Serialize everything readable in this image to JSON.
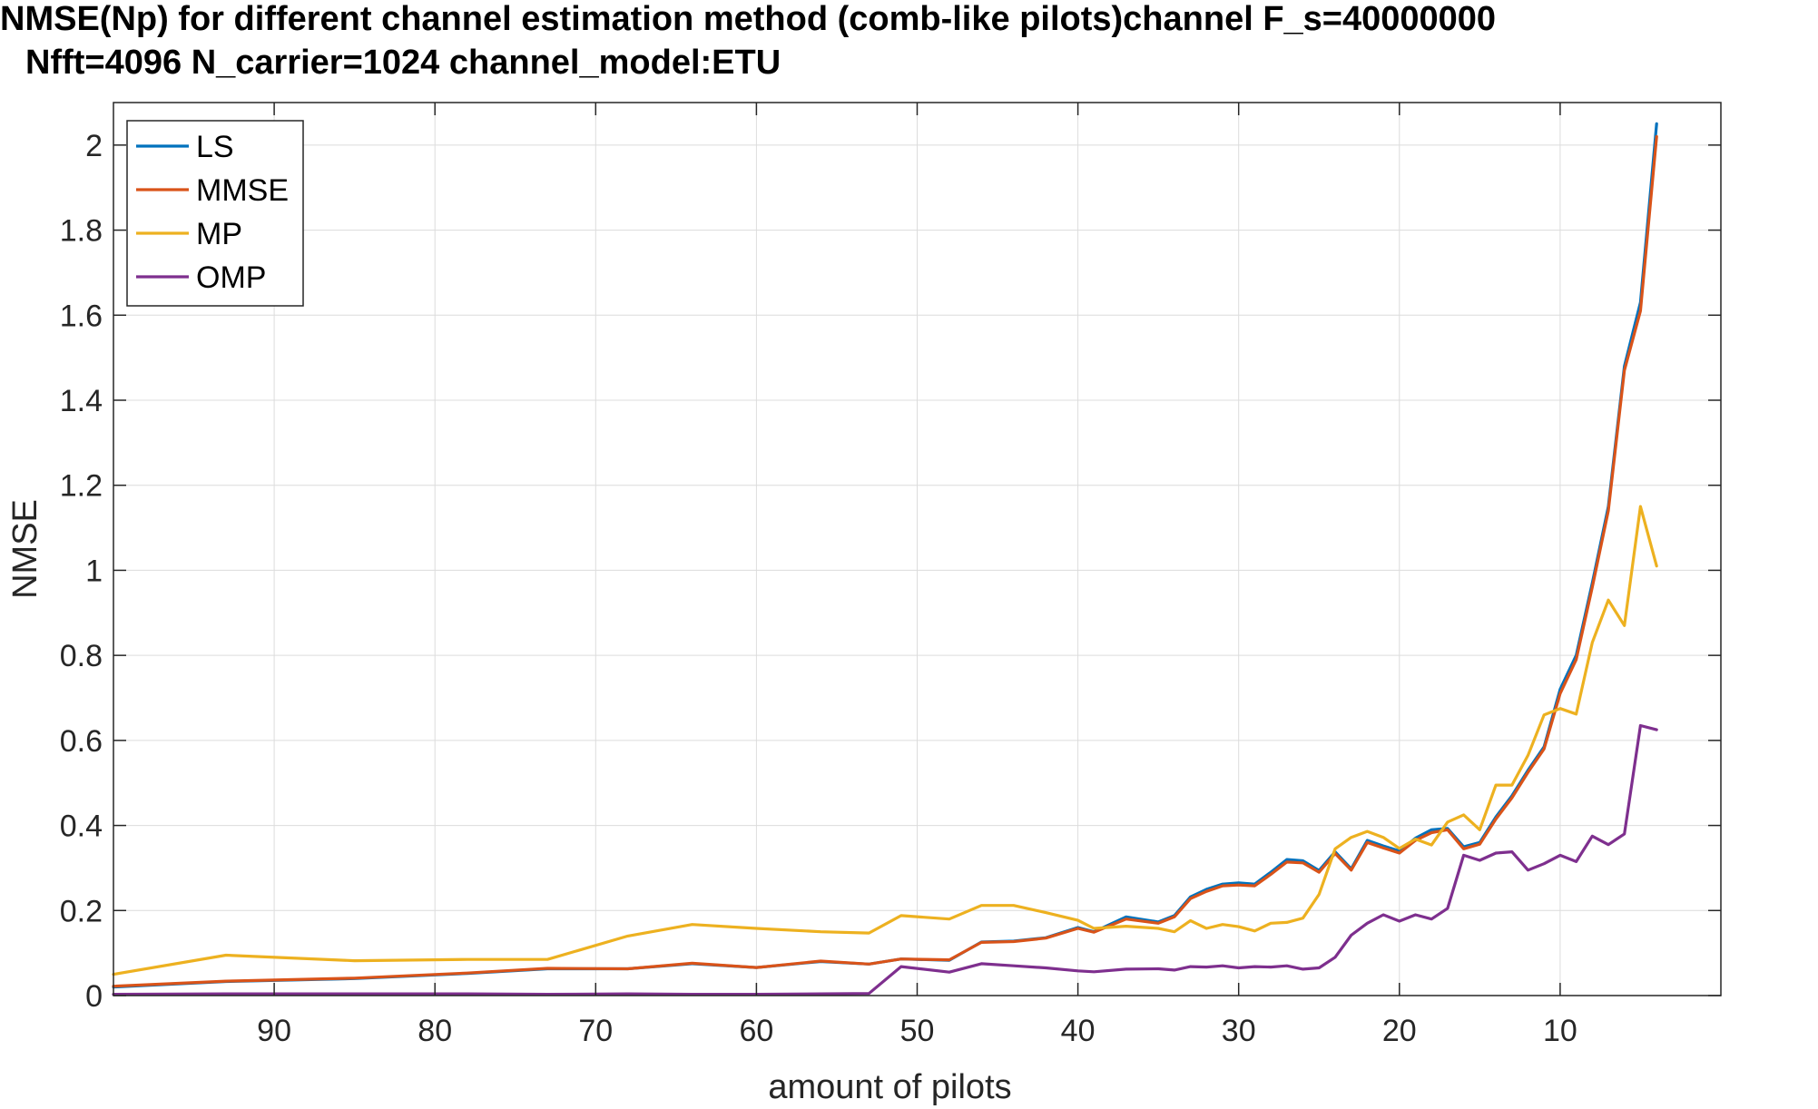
{
  "chart_data": {
    "type": "line",
    "title": "NMSE(Np) for different channel estimation method (comb-like pilots)channel F_s=40000000",
    "subtitle": "Nfft=4096 N_carrier=1024 channel_model:ETU",
    "xlabel": "amount of pilots",
    "ylabel": "NMSE",
    "xlim": [
      100,
      0
    ],
    "x_reversed": true,
    "ylim": [
      0,
      2.1
    ],
    "xticks": [
      90,
      80,
      70,
      60,
      50,
      40,
      30,
      20,
      10
    ],
    "yticks": [
      0,
      0.2,
      0.4,
      0.6,
      0.8,
      1,
      1.2,
      1.4,
      1.6,
      1.8,
      2
    ],
    "ytick_labels": [
      "0",
      "0.2",
      "0.4",
      "0.6",
      "0.8",
      "1",
      "1.2",
      "1.4",
      "1.6",
      "1.8",
      "2"
    ],
    "grid": true,
    "legend": "top-left",
    "series": [
      {
        "name": "LS",
        "color": "#0072BD",
        "x": [
          100,
          93,
          85,
          78,
          73,
          68,
          64,
          60,
          56,
          53,
          51,
          48,
          46,
          44,
          42,
          40,
          39,
          37,
          35,
          34,
          33,
          32,
          31,
          30,
          29,
          28,
          27,
          26,
          25,
          24,
          23,
          22,
          21,
          20,
          19,
          18,
          17,
          16,
          15,
          14,
          13,
          12,
          11,
          10,
          9,
          8,
          7,
          6,
          5,
          4
        ],
        "y": [
          0.02,
          0.033,
          0.04,
          0.052,
          0.063,
          0.063,
          0.075,
          0.066,
          0.08,
          0.074,
          0.086,
          0.083,
          0.126,
          0.128,
          0.136,
          0.16,
          0.15,
          0.185,
          0.173,
          0.188,
          0.232,
          0.25,
          0.262,
          0.265,
          0.262,
          0.29,
          0.32,
          0.317,
          0.294,
          0.338,
          0.298,
          0.365,
          0.352,
          0.34,
          0.37,
          0.39,
          0.393,
          0.35,
          0.36,
          0.42,
          0.47,
          0.53,
          0.585,
          0.72,
          0.8,
          0.97,
          1.15,
          1.48,
          1.63,
          2.05
        ]
      },
      {
        "name": "MMSE",
        "color": "#D95319",
        "x": [
          100,
          93,
          85,
          78,
          73,
          68,
          64,
          60,
          56,
          53,
          51,
          48,
          46,
          44,
          42,
          40,
          39,
          37,
          35,
          34,
          33,
          32,
          31,
          30,
          29,
          28,
          27,
          26,
          25,
          24,
          23,
          22,
          21,
          20,
          19,
          18,
          17,
          16,
          15,
          14,
          13,
          12,
          11,
          10,
          9,
          8,
          7,
          6,
          5,
          4
        ],
        "y": [
          0.022,
          0.034,
          0.041,
          0.053,
          0.064,
          0.063,
          0.076,
          0.066,
          0.081,
          0.074,
          0.086,
          0.084,
          0.125,
          0.127,
          0.135,
          0.158,
          0.149,
          0.18,
          0.17,
          0.185,
          0.228,
          0.245,
          0.258,
          0.26,
          0.258,
          0.285,
          0.314,
          0.312,
          0.29,
          0.334,
          0.295,
          0.36,
          0.347,
          0.335,
          0.365,
          0.383,
          0.39,
          0.345,
          0.356,
          0.415,
          0.465,
          0.525,
          0.58,
          0.71,
          0.79,
          0.96,
          1.14,
          1.47,
          1.61,
          2.02
        ]
      },
      {
        "name": "MP",
        "color": "#EDB120",
        "x": [
          100,
          93,
          85,
          78,
          73,
          68,
          64,
          60,
          56,
          53,
          51,
          48,
          46,
          44,
          42,
          40,
          39,
          37,
          35,
          34,
          33,
          32,
          31,
          30,
          29,
          28,
          27,
          26,
          25,
          24,
          23,
          22,
          21,
          20,
          19,
          18,
          17,
          16,
          15,
          14,
          13,
          12,
          11,
          10,
          9,
          8,
          7,
          6,
          5,
          4
        ],
        "y": [
          0.05,
          0.095,
          0.082,
          0.085,
          0.085,
          0.14,
          0.167,
          0.158,
          0.15,
          0.147,
          0.188,
          0.18,
          0.212,
          0.212,
          0.195,
          0.177,
          0.158,
          0.163,
          0.158,
          0.15,
          0.176,
          0.158,
          0.167,
          0.162,
          0.152,
          0.17,
          0.172,
          0.182,
          0.238,
          0.345,
          0.372,
          0.386,
          0.372,
          0.346,
          0.368,
          0.354,
          0.408,
          0.425,
          0.39,
          0.495,
          0.495,
          0.565,
          0.66,
          0.675,
          0.662,
          0.83,
          0.93,
          0.87,
          1.15,
          1.01
        ]
      },
      {
        "name": "OMP",
        "color": "#7E2F8E",
        "x": [
          100,
          93,
          85,
          78,
          73,
          68,
          64,
          60,
          56,
          53,
          51,
          48,
          46,
          44,
          42,
          40,
          39,
          37,
          35,
          34,
          33,
          32,
          31,
          30,
          29,
          28,
          27,
          26,
          25,
          24,
          23,
          22,
          21,
          20,
          19,
          18,
          17,
          16,
          15,
          14,
          13,
          12,
          11,
          10,
          9,
          8,
          7,
          6,
          5,
          4
        ],
        "y": [
          0.003,
          0.004,
          0.004,
          0.004,
          0.003,
          0.004,
          0.003,
          0.003,
          0.004,
          0.005,
          0.068,
          0.055,
          0.075,
          0.07,
          0.065,
          0.058,
          0.056,
          0.062,
          0.063,
          0.06,
          0.068,
          0.067,
          0.07,
          0.065,
          0.068,
          0.067,
          0.07,
          0.062,
          0.065,
          0.09,
          0.142,
          0.17,
          0.19,
          0.175,
          0.19,
          0.18,
          0.205,
          0.33,
          0.318,
          0.335,
          0.338,
          0.295,
          0.31,
          0.33,
          0.315,
          0.375,
          0.355,
          0.38,
          0.635,
          0.625
        ]
      }
    ]
  }
}
